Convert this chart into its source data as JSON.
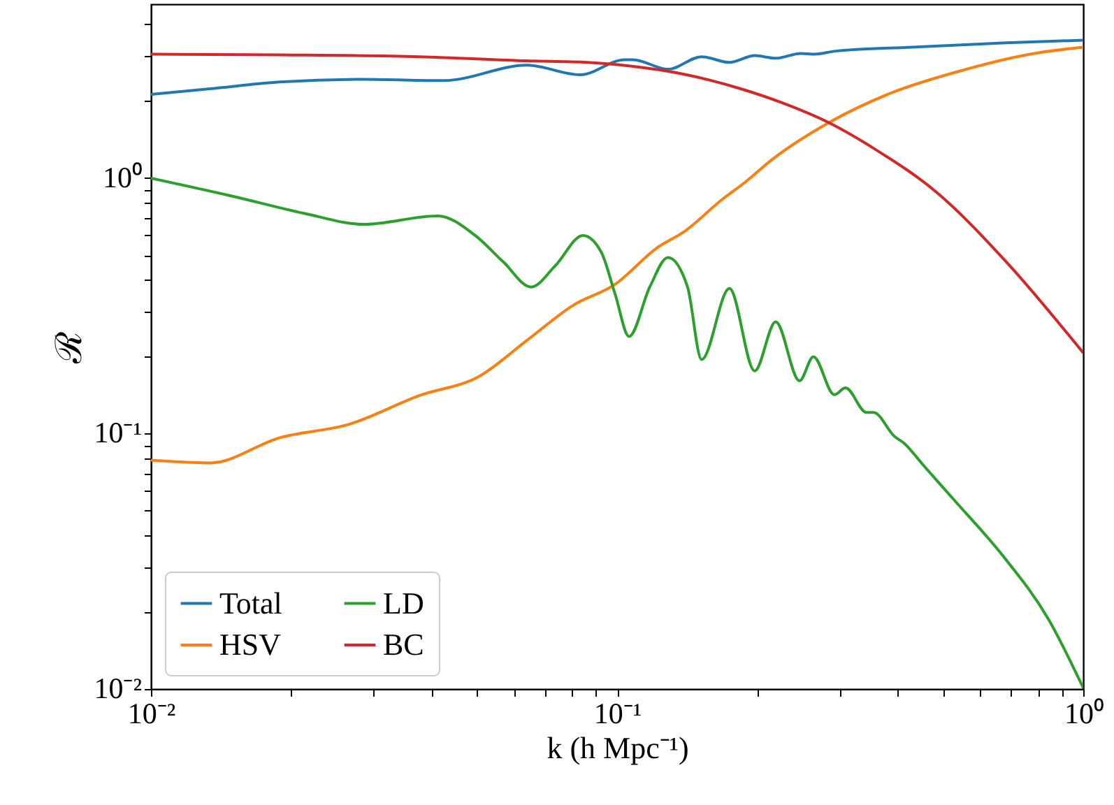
{
  "chart_data": {
    "type": "line",
    "xlabel": "k (h  Mpc⁻¹)",
    "ylabel": "ℛ",
    "log": "xy",
    "legend": "bottom left",
    "line_style": "solid",
    "xlim": [
      0.01,
      1
    ],
    "ylim": [
      0.01,
      4.8
    ],
    "xticks": [
      {
        "value": 0.01,
        "label": "10⁻²"
      },
      {
        "value": 0.02,
        "label": null
      },
      {
        "value": 0.03,
        "label": null
      },
      {
        "value": 0.04,
        "label": null
      },
      {
        "value": 0.05,
        "label": null
      },
      {
        "value": 0.06,
        "label": null
      },
      {
        "value": 0.07,
        "label": null
      },
      {
        "value": 0.08,
        "label": null
      },
      {
        "value": 0.09,
        "label": null
      },
      {
        "value": 0.1,
        "label": "10⁻¹"
      },
      {
        "value": 0.2,
        "label": null
      },
      {
        "value": 0.3,
        "label": null
      },
      {
        "value": 0.4,
        "label": null
      },
      {
        "value": 0.5,
        "label": null
      },
      {
        "value": 0.6,
        "label": null
      },
      {
        "value": 0.7,
        "label": null
      },
      {
        "value": 0.8,
        "label": null
      },
      {
        "value": 0.9,
        "label": null
      },
      {
        "value": 1,
        "label": "10⁰"
      }
    ],
    "yticks": [
      {
        "value": 0.01,
        "label": "10⁻²"
      },
      {
        "value": 0.02,
        "label": null
      },
      {
        "value": 0.03,
        "label": null
      },
      {
        "value": 0.04,
        "label": null
      },
      {
        "value": 0.05,
        "label": null
      },
      {
        "value": 0.06,
        "label": null
      },
      {
        "value": 0.07,
        "label": null
      },
      {
        "value": 0.08,
        "label": null
      },
      {
        "value": 0.09,
        "label": null
      },
      {
        "value": 0.1,
        "label": "10⁻¹"
      },
      {
        "value": 0.2,
        "label": null
      },
      {
        "value": 0.3,
        "label": null
      },
      {
        "value": 0.4,
        "label": null
      },
      {
        "value": 0.5,
        "label": null
      },
      {
        "value": 0.6,
        "label": null
      },
      {
        "value": 0.7,
        "label": null
      },
      {
        "value": 0.8,
        "label": null
      },
      {
        "value": 0.9,
        "label": null
      },
      {
        "value": 1,
        "label": "10⁰"
      },
      {
        "value": 2,
        "label": null
      },
      {
        "value": 3,
        "label": null
      },
      {
        "value": 4,
        "label": null
      }
    ],
    "series": [
      {
        "name": "Total",
        "color": "#1f77b4",
        "x": [
          0.01,
          0.0134,
          0.0189,
          0.0286,
          0.0424,
          0.0641,
          0.0833,
          0.1038,
          0.1082,
          0.1286,
          0.1518,
          0.1742,
          0.1973,
          0.2189,
          0.2479,
          0.2656,
          0.2924,
          0.4305,
          0.6839,
          1
        ],
        "values": [
          2.13,
          2.24,
          2.38,
          2.44,
          2.41,
          2.77,
          2.54,
          2.91,
          2.91,
          2.67,
          2.99,
          2.84,
          3.02,
          2.95,
          3.08,
          3.06,
          3.14,
          3.26,
          3.39,
          3.47
        ]
      },
      {
        "name": "HSV",
        "color": "#ff7f0e",
        "x": [
          0.01,
          0.0134,
          0.0189,
          0.0267,
          0.0377,
          0.0507,
          0.0641,
          0.0805,
          0.099,
          0.1217,
          0.1397,
          0.1683,
          0.188,
          0.2159,
          0.2846,
          0.3855,
          0.5445,
          0.7691,
          1
        ],
        "values": [
          0.0787,
          0.0768,
          0.0964,
          0.109,
          0.141,
          0.168,
          0.232,
          0.318,
          0.384,
          0.533,
          0.62,
          0.828,
          0.963,
          1.19,
          1.65,
          2.15,
          2.63,
          3.06,
          3.26
        ]
      },
      {
        "name": "LD",
        "color": "#2ca02c",
        "x": [
          0.01,
          0.015,
          0.0212,
          0.0286,
          0.0412,
          0.0496,
          0.057,
          0.0654,
          0.0736,
          0.0845,
          0.0925,
          0.099,
          0.1061,
          0.1175,
          0.1286,
          0.1416,
          0.1518,
          0.1742,
          0.1973,
          0.2189,
          0.2462,
          0.2637,
          0.2924,
          0.309,
          0.3428,
          0.3548,
          0.3936,
          0.413,
          0.4519,
          0.5297,
          0.6699,
          0.8414,
          1
        ],
        "values": [
          1.0,
          0.849,
          0.73,
          0.66,
          0.712,
          0.597,
          0.47,
          0.375,
          0.453,
          0.597,
          0.513,
          0.352,
          0.24,
          0.375,
          0.489,
          0.375,
          0.195,
          0.37,
          0.176,
          0.274,
          0.161,
          0.2,
          0.142,
          0.151,
          0.121,
          0.121,
          0.0975,
          0.0916,
          0.0759,
          0.0547,
          0.0335,
          0.0188,
          0.0101
        ]
      },
      {
        "name": "BC",
        "color": "#d62728",
        "x": [
          0.01,
          0.0189,
          0.0377,
          0.0641,
          0.0863,
          0.1082,
          0.1368,
          0.1841,
          0.2266,
          0.2846,
          0.3597,
          0.4842,
          0.6839,
          1
        ],
        "values": [
          3.06,
          3.04,
          2.99,
          2.88,
          2.84,
          2.74,
          2.57,
          2.24,
          1.97,
          1.65,
          1.29,
          0.882,
          0.47,
          0.207
        ]
      }
    ]
  }
}
